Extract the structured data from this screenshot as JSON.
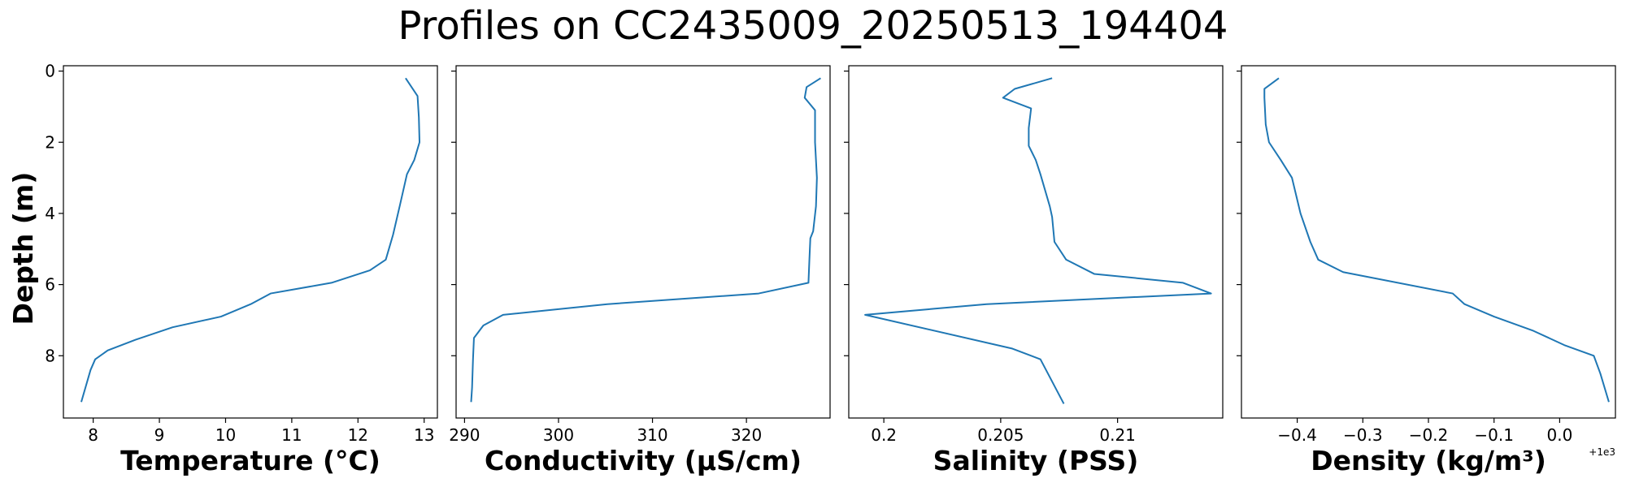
{
  "figure": {
    "title": "Profiles on CC2435009_20250513_194404",
    "ylabel": "Depth (m)",
    "line_color": "#1f77b4"
  },
  "chart_data": [
    {
      "type": "line",
      "xlabel": "Temperature (°C)",
      "ylabel": "Depth (m)",
      "xlim": [
        7.55,
        13.2
      ],
      "ylim": [
        9.75,
        -0.15
      ],
      "xticks": [
        8,
        9,
        10,
        11,
        12,
        13
      ],
      "yticks": [
        0,
        2,
        4,
        6,
        8
      ],
      "x_offset_label": "",
      "x": [
        12.72,
        12.9,
        12.92,
        12.93,
        12.85,
        12.74,
        12.63,
        12.53,
        12.42,
        12.18,
        11.6,
        10.68,
        10.38,
        9.93,
        9.2,
        8.64,
        8.22,
        8.03,
        7.96,
        7.82
      ],
      "y": [
        0.2,
        0.7,
        1.3,
        2.0,
        2.5,
        2.9,
        3.8,
        4.6,
        5.3,
        5.6,
        5.95,
        6.25,
        6.55,
        6.9,
        7.2,
        7.55,
        7.85,
        8.1,
        8.4,
        9.3
      ],
      "grid": false
    },
    {
      "type": "line",
      "xlabel": "Conductivity (µS/cm)",
      "ylabel": "",
      "xlim": [
        289.1,
        328.9
      ],
      "ylim": [
        9.75,
        -0.15
      ],
      "xticks": [
        290,
        300,
        310,
        320
      ],
      "yticks": [
        0,
        2,
        4,
        6,
        8
      ],
      "x_offset_label": "",
      "x": [
        327.9,
        326.4,
        326.2,
        327.3,
        327.3,
        327.5,
        327.4,
        327.1,
        326.8,
        326.7,
        326.6,
        321.3,
        305.2,
        294.1,
        292.0,
        291.0,
        290.9,
        290.8,
        290.7
      ],
      "y": [
        0.2,
        0.45,
        0.75,
        1.1,
        2.0,
        3.0,
        3.8,
        4.5,
        4.7,
        5.3,
        5.95,
        6.25,
        6.55,
        6.85,
        7.15,
        7.5,
        8.1,
        8.9,
        9.3
      ],
      "grid": false
    },
    {
      "type": "line",
      "xlabel": "Salinity (PSS)",
      "ylabel": "",
      "xlim": [
        0.1985,
        0.2145
      ],
      "ylim": [
        9.75,
        -0.15
      ],
      "xticks": [
        0.2,
        0.205,
        0.21
      ],
      "yticks": [
        0,
        2,
        4,
        6,
        8
      ],
      "x_offset_label": "",
      "x": [
        0.2072,
        0.2056,
        0.2051,
        0.2063,
        0.2062,
        0.2062,
        0.2065,
        0.2067,
        0.2071,
        0.2072,
        0.2073,
        0.2078,
        0.209,
        0.2128,
        0.214,
        0.2044,
        0.1992,
        0.2055,
        0.2067,
        0.2071,
        0.2077
      ],
      "y": [
        0.2,
        0.5,
        0.75,
        1.05,
        1.6,
        2.1,
        2.5,
        2.9,
        3.8,
        4.1,
        4.8,
        5.3,
        5.7,
        5.95,
        6.25,
        6.55,
        6.85,
        7.8,
        8.1,
        8.6,
        9.35
      ],
      "grid": false
    },
    {
      "type": "line",
      "xlabel": "Density (kg/m³)",
      "ylabel": "",
      "xlim": [
        -0.485,
        0.085
      ],
      "ylim": [
        9.75,
        -0.15
      ],
      "xticks": [
        -0.4,
        -0.3,
        -0.2,
        -0.1,
        0.0
      ],
      "xtick_labels": [
        "−0.4",
        "−0.3",
        "−0.2",
        "−0.1",
        "0.0"
      ],
      "yticks": [
        0,
        2,
        4,
        6,
        8
      ],
      "x_offset_label": "+1e3",
      "x": [
        -0.428,
        -0.45,
        -0.45,
        -0.448,
        -0.443,
        -0.425,
        -0.408,
        -0.395,
        -0.38,
        -0.368,
        -0.33,
        -0.163,
        -0.145,
        -0.1,
        -0.04,
        0.007,
        0.052,
        0.062,
        0.075
      ],
      "y": [
        0.2,
        0.5,
        0.75,
        1.5,
        2.0,
        2.5,
        3.0,
        4.0,
        4.8,
        5.3,
        5.65,
        6.25,
        6.55,
        6.9,
        7.3,
        7.7,
        8.0,
        8.5,
        9.3
      ],
      "grid": false
    }
  ]
}
